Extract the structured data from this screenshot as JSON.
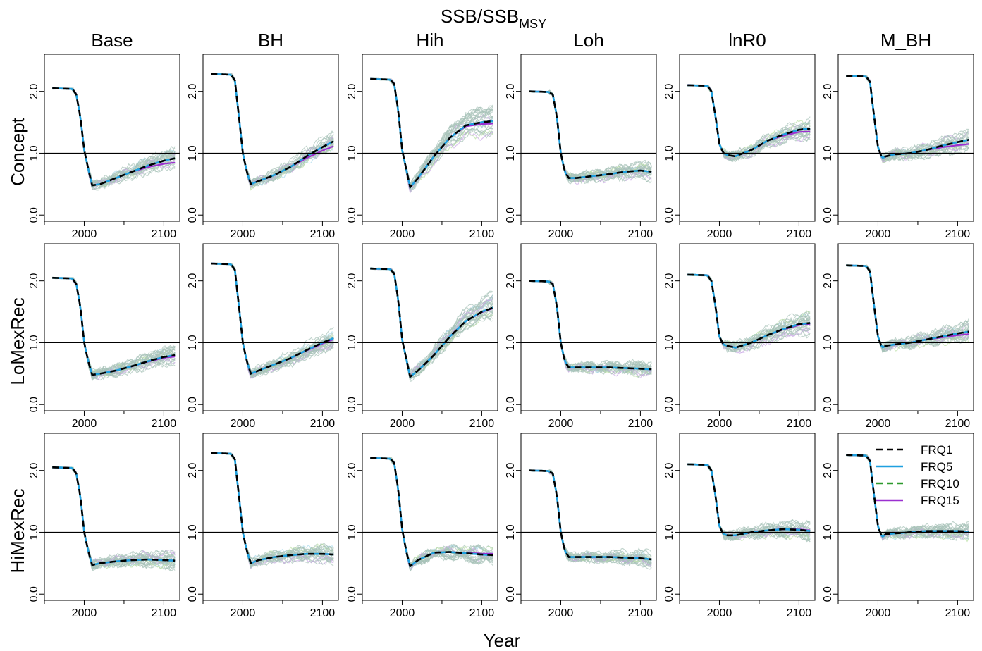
{
  "figure": {
    "title_main": "SSB/SSB",
    "title_sub": "MSY",
    "xlabel": "Year"
  },
  "columns": [
    "Base",
    "BH",
    "Hih",
    "Loh",
    "lnR0",
    "M_BH"
  ],
  "rows": [
    "Concept",
    "LoMexRec",
    "HiMexRec"
  ],
  "axes": {
    "x_ticks": [
      2000,
      2100
    ],
    "x_minor_ticks": [
      1950,
      2050
    ],
    "x_range": [
      1950,
      2120
    ],
    "y_ticks": [
      "0.0",
      "1.0",
      "2.0"
    ],
    "y_tick_values": [
      0,
      1,
      2
    ],
    "y_range": [
      -0.1,
      2.6
    ],
    "reference_line": 1.0
  },
  "legend": {
    "position": "top-right of HiMexRec / M_BH panel",
    "entries": [
      {
        "label": "FRQ1",
        "color": "#000000",
        "dash": "dashed"
      },
      {
        "label": "FRQ5",
        "color": "#1fa0e0",
        "dash": "solid"
      },
      {
        "label": "FRQ10",
        "color": "#2e9a2e",
        "dash": "dashed"
      },
      {
        "label": "FRQ15",
        "color": "#9b30d0",
        "dash": "solid"
      }
    ]
  },
  "colors": {
    "iteration_lines": "#a7c2b8",
    "iteration_alt": [
      "#c9a6e6",
      "#a6d8ea",
      "#b9dfa3"
    ]
  },
  "chart_data": {
    "type": "line",
    "description_units": "SSB relative to SSB_MSY by year",
    "x": [
      1960,
      1985,
      1990,
      1995,
      2000,
      2005,
      2010,
      2020,
      2040,
      2060,
      2080,
      2100,
      2115
    ],
    "panels": [
      {
        "row": "Concept",
        "col": "Base",
        "values": [
          2.05,
          2.04,
          1.95,
          1.6,
          1.05,
          0.75,
          0.48,
          0.5,
          0.6,
          0.7,
          0.8,
          0.88,
          0.92
        ],
        "spread": 0.15,
        "frq15_end": 0.85
      },
      {
        "row": "Concept",
        "col": "BH",
        "values": [
          2.28,
          2.27,
          2.18,
          1.6,
          1.0,
          0.7,
          0.5,
          0.55,
          0.65,
          0.78,
          0.95,
          1.1,
          1.2
        ],
        "spread": 0.15,
        "frq15_end": 1.12
      },
      {
        "row": "Concept",
        "col": "Hih",
        "values": [
          2.2,
          2.19,
          2.12,
          1.7,
          1.05,
          0.75,
          0.45,
          0.6,
          0.95,
          1.25,
          1.45,
          1.5,
          1.52
        ],
        "spread": 0.25,
        "frq15_end": 1.48
      },
      {
        "row": "Concept",
        "col": "Loh",
        "values": [
          2.0,
          1.99,
          1.95,
          1.6,
          1.0,
          0.7,
          0.6,
          0.6,
          0.63,
          0.66,
          0.7,
          0.72,
          0.7
        ],
        "spread": 0.12,
        "frq15_end": 0.7
      },
      {
        "row": "Concept",
        "col": "lnR0",
        "values": [
          2.1,
          2.09,
          2.0,
          1.6,
          1.15,
          1.0,
          0.97,
          0.95,
          1.05,
          1.2,
          1.3,
          1.38,
          1.4
        ],
        "spread": 0.18,
        "frq15_end": 1.35
      },
      {
        "row": "Concept",
        "col": "M_BH",
        "values": [
          2.25,
          2.24,
          2.15,
          1.6,
          1.1,
          0.92,
          0.95,
          0.98,
          1.0,
          1.05,
          1.12,
          1.18,
          1.22
        ],
        "spread": 0.15,
        "frq15_end": 1.15
      },
      {
        "row": "LoMexRec",
        "col": "Base",
        "values": [
          2.05,
          2.04,
          1.95,
          1.6,
          1.0,
          0.7,
          0.48,
          0.5,
          0.55,
          0.62,
          0.7,
          0.77,
          0.8
        ],
        "spread": 0.13,
        "frq15_end": 0.78
      },
      {
        "row": "LoMexRec",
        "col": "BH",
        "values": [
          2.28,
          2.27,
          2.18,
          1.6,
          1.0,
          0.7,
          0.5,
          0.55,
          0.65,
          0.75,
          0.88,
          1.0,
          1.08
        ],
        "spread": 0.14,
        "frq15_end": 1.06
      },
      {
        "row": "LoMexRec",
        "col": "Hih",
        "values": [
          2.2,
          2.19,
          2.12,
          1.7,
          1.05,
          0.75,
          0.45,
          0.55,
          0.8,
          1.1,
          1.35,
          1.5,
          1.57
        ],
        "spread": 0.25,
        "frq15_end": 1.56
      },
      {
        "row": "LoMexRec",
        "col": "Loh",
        "values": [
          2.0,
          1.99,
          1.95,
          1.6,
          1.0,
          0.7,
          0.6,
          0.6,
          0.6,
          0.6,
          0.59,
          0.58,
          0.57
        ],
        "spread": 0.1,
        "frq15_end": 0.57
      },
      {
        "row": "LoMexRec",
        "col": "lnR0",
        "values": [
          2.1,
          2.09,
          2.0,
          1.6,
          1.1,
          0.97,
          0.95,
          0.92,
          1.0,
          1.12,
          1.22,
          1.3,
          1.32
        ],
        "spread": 0.18,
        "frq15_end": 1.3
      },
      {
        "row": "LoMexRec",
        "col": "M_BH",
        "values": [
          2.25,
          2.24,
          2.15,
          1.6,
          1.1,
          0.92,
          0.95,
          0.97,
          1.0,
          1.05,
          1.1,
          1.15,
          1.18
        ],
        "spread": 0.14,
        "frq15_end": 1.14
      },
      {
        "row": "HiMexRec",
        "col": "Base",
        "values": [
          2.05,
          2.04,
          1.95,
          1.6,
          1.0,
          0.7,
          0.47,
          0.5,
          0.53,
          0.55,
          0.56,
          0.55,
          0.54
        ],
        "spread": 0.12,
        "frq15_end": 0.54
      },
      {
        "row": "HiMexRec",
        "col": "BH",
        "values": [
          2.28,
          2.27,
          2.18,
          1.6,
          1.0,
          0.7,
          0.5,
          0.55,
          0.6,
          0.63,
          0.65,
          0.65,
          0.64
        ],
        "spread": 0.12,
        "frq15_end": 0.64
      },
      {
        "row": "HiMexRec",
        "col": "Hih",
        "values": [
          2.2,
          2.19,
          2.12,
          1.7,
          1.05,
          0.7,
          0.45,
          0.55,
          0.67,
          0.68,
          0.66,
          0.64,
          0.63
        ],
        "spread": 0.12,
        "frq15_end": 0.65
      },
      {
        "row": "HiMexRec",
        "col": "Loh",
        "values": [
          2.0,
          1.99,
          1.95,
          1.6,
          1.0,
          0.7,
          0.6,
          0.6,
          0.6,
          0.6,
          0.59,
          0.58,
          0.56
        ],
        "spread": 0.1,
        "frq15_end": 0.56
      },
      {
        "row": "HiMexRec",
        "col": "lnR0",
        "values": [
          2.1,
          2.09,
          2.0,
          1.6,
          1.1,
          0.97,
          0.95,
          0.95,
          1.0,
          1.03,
          1.05,
          1.04,
          1.02
        ],
        "spread": 0.12,
        "frq15_end": 1.03
      },
      {
        "row": "HiMexRec",
        "col": "M_BH",
        "values": [
          2.25,
          2.24,
          2.15,
          1.6,
          1.1,
          0.92,
          0.97,
          0.98,
          1.0,
          1.02,
          1.02,
          1.02,
          1.01
        ],
        "spread": 0.1,
        "frq15_end": 1.01
      }
    ]
  }
}
